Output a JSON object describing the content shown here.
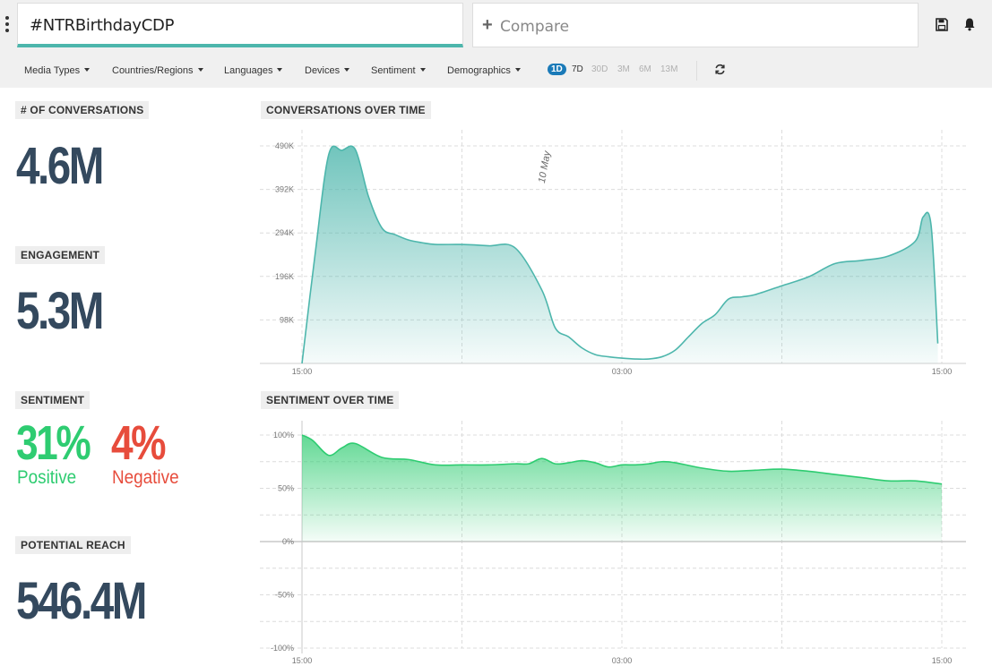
{
  "search": {
    "query": "#NTRBirthdayCDP"
  },
  "compare": {
    "plus": "+",
    "label": "Compare"
  },
  "filters": [
    {
      "label": "Media Types"
    },
    {
      "label": "Countries/Regions"
    },
    {
      "label": "Languages"
    },
    {
      "label": "Devices"
    },
    {
      "label": "Sentiment"
    },
    {
      "label": "Demographics"
    }
  ],
  "ranges": [
    "1D",
    "7D",
    "30D",
    "3M",
    "6M",
    "13M"
  ],
  "active_range": "1D",
  "metrics": {
    "conversations_label": "# OF CONVERSATIONS",
    "conversations_value": "4.6M",
    "engagement_label": "ENGAGEMENT",
    "engagement_value": "5.3M",
    "sentiment_label": "SENTIMENT",
    "positive_value": "31%",
    "positive_label": "Positive",
    "negative_value": "4%",
    "negative_label": "Negative",
    "reach_label": "POTENTIAL REACH",
    "reach_value": "546.4M"
  },
  "colors": {
    "accent": "#4db6ac",
    "positive": "#2ecc71",
    "negative": "#e74c3c",
    "metric_text": "#34495e",
    "range_active": "#1a7ab8"
  },
  "chart_data": [
    {
      "type": "area",
      "title": "CONVERSATIONS OVER TIME",
      "x_ticks": [
        "15:00",
        "03:00",
        "15:00"
      ],
      "y_ticks": [
        "98K",
        "196K",
        "294K",
        "392K",
        "490K"
      ],
      "ylim": [
        0,
        490000
      ],
      "annotation": "10 May",
      "color": "#4db6ac",
      "x_hours": [
        0,
        0.5,
        1,
        1.5,
        2,
        2.5,
        3,
        3.5,
        4,
        4.5,
        5,
        6,
        7,
        8,
        9,
        9.5,
        10,
        10.5,
        11,
        11.5,
        12,
        12.5,
        13,
        13.5,
        14,
        14.5,
        15,
        15.5,
        16,
        16.5,
        17,
        18,
        19,
        20,
        21,
        22,
        23,
        23.3,
        23.6,
        23.85
      ],
      "values": [
        0,
        250000,
        470000,
        480000,
        482000,
        375000,
        305000,
        290000,
        278000,
        272000,
        268000,
        268000,
        265000,
        260000,
        165000,
        80000,
        60000,
        35000,
        20000,
        15000,
        12000,
        10000,
        10000,
        15000,
        30000,
        60000,
        90000,
        110000,
        145000,
        150000,
        155000,
        175000,
        195000,
        225000,
        232000,
        242000,
        275000,
        330000,
        310000,
        45000
      ]
    },
    {
      "type": "area",
      "title": "SENTIMENT OVER TIME",
      "x_ticks": [
        "15:00",
        "03:00",
        "15:00"
      ],
      "y_ticks": [
        "100%",
        "50%",
        "0%",
        "-50%",
        "-100%"
      ],
      "ylim": [
        -100,
        100
      ],
      "color": "#2ecc71",
      "x_hours": [
        0,
        0.4,
        1,
        1.5,
        2,
        3,
        4,
        5,
        6,
        7,
        8,
        8.5,
        9,
        9.5,
        10,
        10.5,
        11,
        11.5,
        12,
        12.5,
        13,
        13.5,
        14,
        15,
        16,
        17,
        18,
        19,
        20,
        21,
        22,
        23,
        24
      ],
      "values": [
        100,
        95,
        81,
        88,
        92,
        79,
        77,
        72,
        72,
        72,
        73,
        73,
        78,
        73,
        74,
        76,
        74,
        70,
        72,
        72,
        73,
        75,
        74,
        69,
        66,
        67,
        68,
        66,
        63,
        60,
        57,
        57,
        54
      ]
    }
  ]
}
